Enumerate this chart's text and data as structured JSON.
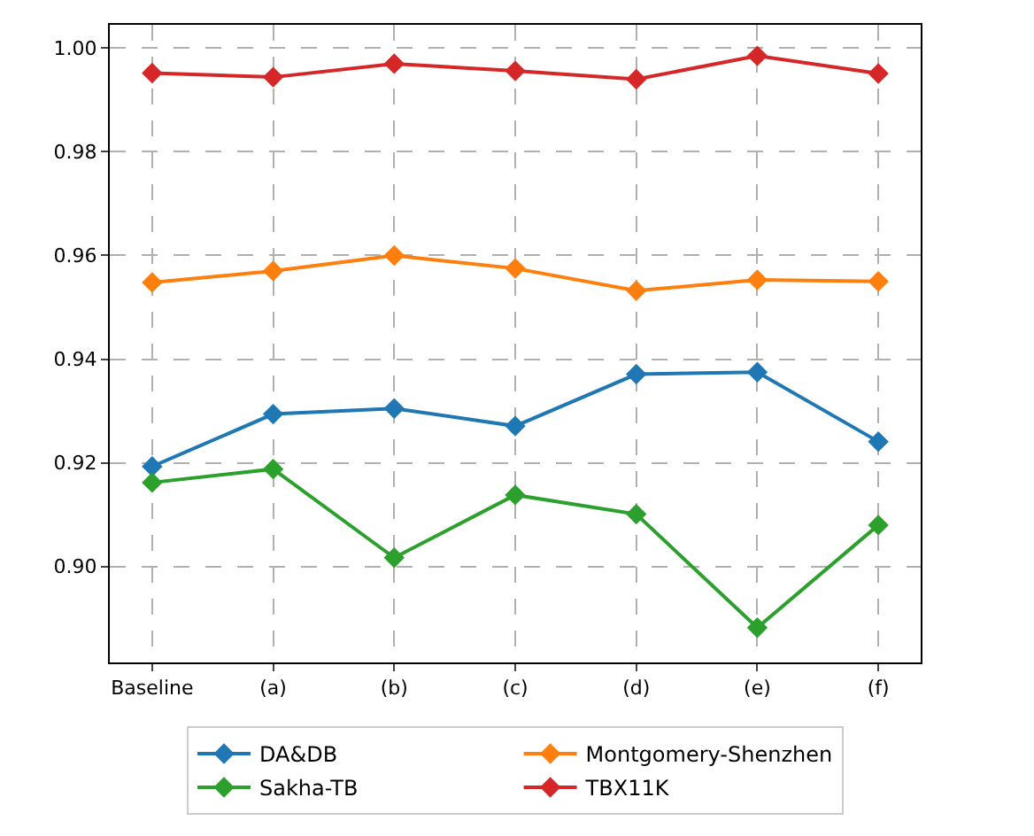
{
  "chart_data": {
    "type": "line",
    "categories": [
      "Baseline",
      "(a)",
      "(b)",
      "(c)",
      "(d)",
      "(e)",
      "(f)"
    ],
    "series": [
      {
        "name": "DA&DB",
        "color": "#1f77b4",
        "values": [
          0.9193,
          0.9294,
          0.9305,
          0.9271,
          0.9371,
          0.9375,
          0.9241
        ]
      },
      {
        "name": "Montgomery-Shenzhen",
        "color": "#ff7f0e",
        "values": [
          0.9548,
          0.957,
          0.96,
          0.9575,
          0.9532,
          0.9553,
          0.955
        ]
      },
      {
        "name": "Sakha-TB",
        "color": "#2ca02c",
        "values": [
          0.9162,
          0.9188,
          0.9017,
          0.9138,
          0.9101,
          0.8882,
          0.908
        ]
      },
      {
        "name": "TBX11K",
        "color": "#d62728",
        "values": [
          0.9952,
          0.9944,
          0.997,
          0.9956,
          0.994,
          0.9985,
          0.9951
        ]
      }
    ],
    "ylim": [
      0.8815,
      1.0045
    ],
    "yticks": [
      {
        "value": 0.9,
        "label": "0.90"
      },
      {
        "value": 0.92,
        "label": "0.92"
      },
      {
        "value": 0.94,
        "label": "0.94"
      },
      {
        "value": 0.96,
        "label": "0.96"
      },
      {
        "value": 0.98,
        "label": "0.98"
      },
      {
        "value": 1.0,
        "label": "1.00"
      }
    ],
    "grid": true,
    "legend": "bottom",
    "marker": "diamond",
    "line_style": "solid"
  }
}
